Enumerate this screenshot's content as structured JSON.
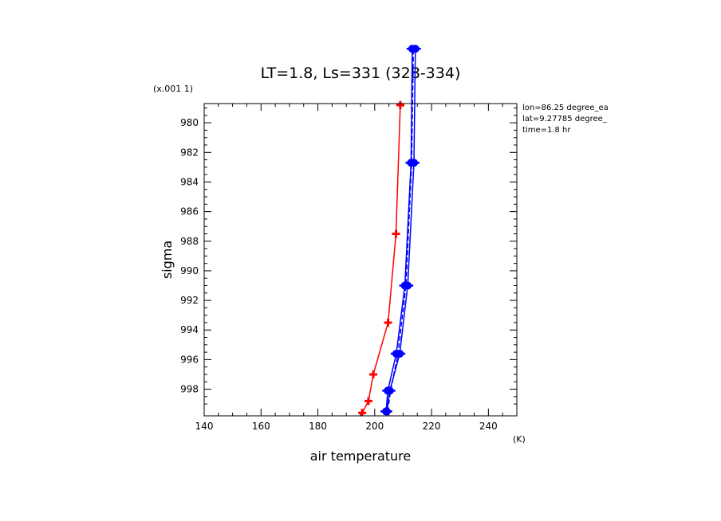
{
  "chart_data": {
    "type": "line",
    "title": "LT=1.8, Ls=331 (328-334)",
    "xlabel": "air temperature",
    "xunit": "(K)",
    "ylabel": "sigma",
    "yunit": "(x.001 1)",
    "xlim": [
      140,
      250
    ],
    "ylim": [
      978.7,
      999.8
    ],
    "y_inverted": true,
    "xticks": [
      "140",
      "160",
      "180",
      "200",
      "220",
      "240"
    ],
    "yticks": [
      "980",
      "982",
      "984",
      "986",
      "988",
      "990",
      "992",
      "994",
      "996",
      "998"
    ],
    "info": [
      "lon=86.25 degree_ea",
      "lat=9.27785 degree_",
      "time=1.8 hr"
    ],
    "series": [
      {
        "color": "#ff0000",
        "marker": "cross",
        "line": "solid",
        "points": [
          {
            "x": 195.6,
            "y": 999.6
          },
          {
            "x": 197.8,
            "y": 998.8
          },
          {
            "x": 199.5,
            "y": 997.0
          },
          {
            "x": 204.7,
            "y": 993.5
          },
          {
            "x": 207.5,
            "y": 987.5
          },
          {
            "x": 209.0,
            "y": 978.8
          }
        ]
      },
      {
        "color": "#0000ff",
        "marker": "dot",
        "line": "solid",
        "points": [
          {
            "x": 204.2,
            "y": 999.5
          },
          {
            "x": 205.3,
            "y": 998.1
          },
          {
            "x": 208.8,
            "y": 995.6
          },
          {
            "x": 211.6,
            "y": 991.0
          },
          {
            "x": 213.8,
            "y": 982.7
          },
          {
            "x": 214.3,
            "y": 975.0
          }
        ]
      },
      {
        "color": "#0000ff",
        "marker": "dot",
        "line": "solid",
        "points": [
          {
            "x": 204.0,
            "y": 999.5
          },
          {
            "x": 204.6,
            "y": 998.1
          },
          {
            "x": 207.6,
            "y": 995.6
          },
          {
            "x": 210.6,
            "y": 991.0
          },
          {
            "x": 212.8,
            "y": 982.7
          },
          {
            "x": 213.2,
            "y": 975.0
          }
        ]
      },
      {
        "color": "#0000ff",
        "marker": "none",
        "line": "dashed",
        "points": [
          {
            "x": 204.5,
            "y": 999.5
          },
          {
            "x": 205.6,
            "y": 998.1
          },
          {
            "x": 208.2,
            "y": 995.6
          },
          {
            "x": 211.0,
            "y": 991.0
          },
          {
            "x": 213.0,
            "y": 982.7
          },
          {
            "x": 213.6,
            "y": 975.0
          }
        ]
      }
    ]
  }
}
